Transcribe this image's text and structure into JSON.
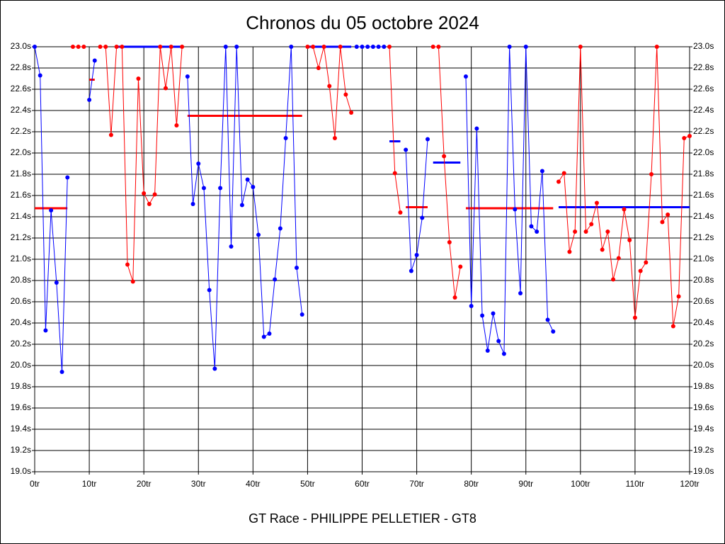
{
  "chart_data": {
    "type": "line",
    "title": "Chronos du 05 octobre 2024",
    "footer": "GT Race - PHILIPPE PELLETIER - GT8",
    "grid": true,
    "xlim": [
      0,
      120
    ],
    "ylim": [
      19.0,
      23.0
    ],
    "xticks": [
      {
        "value": 0,
        "label": "0tr"
      },
      {
        "value": 10,
        "label": "10tr"
      },
      {
        "value": 20,
        "label": "20tr"
      },
      {
        "value": 30,
        "label": "30tr"
      },
      {
        "value": 40,
        "label": "40tr"
      },
      {
        "value": 50,
        "label": "50tr"
      },
      {
        "value": 60,
        "label": "60tr"
      },
      {
        "value": 70,
        "label": "70tr"
      },
      {
        "value": 80,
        "label": "80tr"
      },
      {
        "value": 90,
        "label": "90tr"
      },
      {
        "value": 100,
        "label": "100tr"
      },
      {
        "value": 110,
        "label": "110tr"
      },
      {
        "value": 120,
        "label": "120tr"
      }
    ],
    "yticks": [
      {
        "value": 19.0,
        "label": "19.0s"
      },
      {
        "value": 19.2,
        "label": "19.2s"
      },
      {
        "value": 19.4,
        "label": "19.4s"
      },
      {
        "value": 19.6,
        "label": "19.6s"
      },
      {
        "value": 19.8,
        "label": "19.8s"
      },
      {
        "value": 20.0,
        "label": "20.0s"
      },
      {
        "value": 20.2,
        "label": "20.2s"
      },
      {
        "value": 20.4,
        "label": "20.4s"
      },
      {
        "value": 20.6,
        "label": "20.6s"
      },
      {
        "value": 20.8,
        "label": "20.8s"
      },
      {
        "value": 21.0,
        "label": "21.0s"
      },
      {
        "value": 21.2,
        "label": "21.2s"
      },
      {
        "value": 21.4,
        "label": "21.4s"
      },
      {
        "value": 21.6,
        "label": "21.6s"
      },
      {
        "value": 21.8,
        "label": "21.8s"
      },
      {
        "value": 22.0,
        "label": "22.0s"
      },
      {
        "value": 22.2,
        "label": "22.2s"
      },
      {
        "value": 22.4,
        "label": "22.4s"
      },
      {
        "value": 22.6,
        "label": "22.6s"
      },
      {
        "value": 22.8,
        "label": "22.8s"
      },
      {
        "value": 23.0,
        "label": "23.0s"
      }
    ],
    "x": [
      0,
      1,
      2,
      3,
      4,
      5,
      6,
      7,
      8,
      9,
      10,
      11,
      12,
      13,
      14,
      15,
      16,
      17,
      18,
      19,
      20,
      21,
      22,
      23,
      24,
      25,
      26,
      27,
      28,
      29,
      30,
      31,
      32,
      33,
      34,
      35,
      36,
      37,
      38,
      39,
      40,
      41,
      42,
      43,
      44,
      45,
      46,
      47,
      48,
      49,
      50,
      51,
      52,
      53,
      54,
      55,
      56,
      57,
      58,
      59,
      60,
      61,
      62,
      63,
      64,
      65,
      66,
      67,
      68,
      69,
      70,
      71,
      72,
      73,
      74,
      75,
      76,
      77,
      78,
      79,
      80,
      81,
      82,
      83,
      84,
      85,
      86,
      87,
      88,
      89,
      90,
      91,
      92,
      93,
      94,
      95,
      96,
      97,
      98,
      99,
      100,
      101,
      102,
      103,
      104,
      105,
      106,
      107,
      108,
      109,
      110,
      111,
      112,
      113,
      114,
      115,
      116,
      117,
      118,
      119,
      120
    ],
    "series": [
      {
        "color": "#0000ff",
        "values": [
          23.0,
          22.73,
          20.33,
          21.46,
          20.78,
          19.94,
          21.77,
          null,
          null,
          null,
          22.5,
          22.87,
          null,
          null,
          null,
          null,
          null,
          null,
          null,
          null,
          null,
          null,
          null,
          null,
          null,
          null,
          null,
          null,
          22.72,
          21.52,
          21.9,
          21.67,
          20.71,
          19.97,
          21.67,
          23.0,
          21.12,
          23.0,
          21.51,
          21.75,
          21.68,
          21.23,
          20.27,
          20.3,
          20.81,
          21.29,
          22.14,
          23.0,
          20.92,
          20.48,
          null,
          null,
          null,
          null,
          null,
          null,
          null,
          null,
          null,
          23.0,
          23.0,
          23.0,
          23.0,
          23.0,
          23.0,
          null,
          null,
          null,
          22.03,
          20.89,
          21.04,
          21.39,
          22.13,
          null,
          null,
          null,
          null,
          null,
          null,
          22.72,
          20.56,
          22.23,
          20.47,
          20.14,
          20.49,
          20.23,
          20.11,
          23.0,
          21.47,
          20.68,
          23.0,
          21.31,
          21.26,
          21.83,
          20.43,
          20.32,
          null,
          null,
          null,
          null,
          null,
          null,
          null,
          null,
          null,
          null,
          null,
          null,
          null,
          null,
          null,
          null,
          null,
          null,
          null,
          null,
          null,
          null,
          null,
          null,
          null
        ]
      },
      {
        "color": "#ff0000",
        "values": [
          null,
          null,
          null,
          null,
          null,
          null,
          null,
          23.0,
          23.0,
          23.0,
          null,
          null,
          23.0,
          23.0,
          22.17,
          23.0,
          23.0,
          20.95,
          20.79,
          22.7,
          21.62,
          21.52,
          21.61,
          23.0,
          22.61,
          23.0,
          22.26,
          23.0,
          null,
          null,
          null,
          null,
          null,
          null,
          null,
          null,
          null,
          null,
          null,
          null,
          null,
          null,
          null,
          null,
          null,
          null,
          null,
          null,
          null,
          null,
          23.0,
          23.0,
          22.8,
          23.0,
          22.63,
          22.14,
          23.0,
          22.55,
          22.38,
          null,
          null,
          null,
          null,
          null,
          null,
          23.0,
          21.81,
          21.44,
          null,
          null,
          null,
          null,
          null,
          23.0,
          23.0,
          21.97,
          21.16,
          20.64,
          20.93,
          null,
          null,
          null,
          null,
          null,
          null,
          null,
          null,
          null,
          null,
          null,
          null,
          null,
          null,
          null,
          null,
          null,
          21.73,
          21.81,
          21.07,
          21.26,
          23.0,
          21.26,
          21.33,
          21.53,
          21.09,
          21.26,
          20.81,
          21.01,
          21.47,
          21.18,
          20.45,
          20.89,
          20.97,
          21.8,
          23.0,
          21.35,
          21.42,
          20.37,
          20.65,
          22.14,
          22.16
        ]
      }
    ],
    "averages": [
      {
        "color": "#ff0000",
        "x": [
          0,
          6
        ],
        "value": 21.48
      },
      {
        "color": "#ff0000",
        "x": [
          10,
          11
        ],
        "value": 22.69
      },
      {
        "color": "#0000ff",
        "x": [
          15,
          27
        ],
        "value": 23.0
      },
      {
        "color": "#ff0000",
        "x": [
          28,
          49
        ],
        "value": 22.35
      },
      {
        "color": "#0000ff",
        "x": [
          50,
          58
        ],
        "value": 23.0
      },
      {
        "color": "#0000ff",
        "x": [
          65,
          67
        ],
        "value": 22.11
      },
      {
        "color": "#ff0000",
        "x": [
          68,
          72
        ],
        "value": 21.49
      },
      {
        "color": "#0000ff",
        "x": [
          73,
          78
        ],
        "value": 21.91
      },
      {
        "color": "#ff0000",
        "x": [
          79,
          95
        ],
        "value": 21.48
      },
      {
        "color": "#0000ff",
        "x": [
          96,
          120
        ],
        "value": 21.49
      }
    ]
  }
}
